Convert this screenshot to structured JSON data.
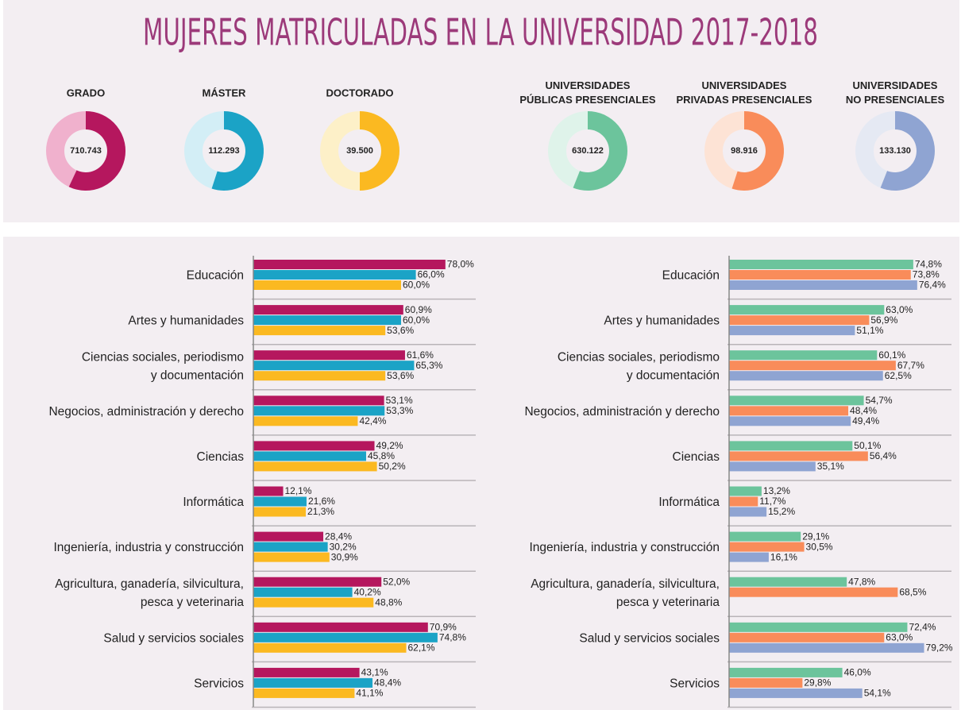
{
  "chart_data": [
    {
      "type": "donut",
      "title": "MUJERES MATRICULADAS EN LA UNIVERSIDAD 2017-2018",
      "series": [
        {
          "name": "GRADO",
          "color": "#b5175e",
          "track_color": "#f0b1cd",
          "value": 710743,
          "value_label": "710.743",
          "share": 57
        },
        {
          "name": "MÁSTER",
          "color": "#1ba3c6",
          "track_color": "#d3eef6",
          "value": 112293,
          "value_label": "112.293",
          "share": 55
        },
        {
          "name": "DOCTORADO",
          "color": "#fbb921",
          "track_color": "#fdf0c8",
          "value": 39500,
          "value_label": "39.500",
          "share": 50
        },
        {
          "name": "UNIVERSIDADES\nPÚBLICAS PRESENCIALES",
          "color": "#6cc49c",
          "track_color": "#dff3ea",
          "value": 630122,
          "value_label": "630.122",
          "share": 56
        },
        {
          "name": "UNIVERSIDADES\nPRIVADAS PRESENCIALES",
          "color": "#f98c5a",
          "track_color": "#fde3d5",
          "value": 98916,
          "value_label": "98.916",
          "share": 55
        },
        {
          "name": "UNIVERSIDADES\nNO PRESENCIALES",
          "color": "#8fa4d2",
          "track_color": "#e5e9f3",
          "value": 133130,
          "value_label": "133.130",
          "share": 56
        }
      ]
    },
    {
      "type": "hbar",
      "categories": [
        "Educación",
        "Artes y humanidades",
        "Ciencias sociales, periodismo\ny documentación",
        "Negocios, administración y derecho",
        "Ciencias",
        "Informática",
        "Ingeniería, industria y construcción",
        "Agricultura, ganadería,  silvicultura,\npesca y veterinaria",
        "Salud y servicios sociales",
        "Servicios"
      ],
      "xlim": [
        0,
        100
      ],
      "series": [
        {
          "color": "#b5175e",
          "values": [
            78.0,
            60.9,
            61.6,
            53.1,
            49.2,
            12.1,
            28.4,
            52.0,
            70.9,
            43.1
          ],
          "value_labels": [
            "78,0%",
            "60,9%",
            "61,6%",
            "53,1%",
            "49,2%",
            "12,1%",
            "28,4%",
            "52,0%",
            "70,9%",
            "43,1%"
          ]
        },
        {
          "color": "#1ba3c6",
          "values": [
            66.0,
            60.0,
            65.3,
            53.3,
            45.8,
            21.6,
            30.2,
            40.2,
            74.8,
            48.4
          ],
          "value_labels": [
            "66,0%",
            "60,0%",
            "65,3%",
            "53,3%",
            "45,8%",
            "21,6%",
            "30,2%",
            "40,2%",
            "74,8%",
            "48,4%"
          ]
        },
        {
          "color": "#fbb921",
          "values": [
            60.0,
            53.6,
            53.6,
            42.4,
            50.2,
            21.3,
            30.9,
            48.8,
            62.1,
            41.1
          ],
          "value_labels": [
            "60,0%",
            "53,6%",
            "53,6%",
            "42,4%",
            "50,2%",
            "21,3%",
            "30,9%",
            "48,8%",
            "62,1%",
            "41,1%"
          ]
        }
      ]
    },
    {
      "type": "hbar",
      "categories": [
        "Educación",
        "Artes y humanidades",
        "Ciencias sociales, periodismo\ny documentación",
        "Negocios, administración y derecho",
        "Ciencias",
        "Informática",
        "Ingeniería, industria y construcción",
        "Agricultura, ganadería,  silvicultura,\npesca y veterinaria",
        "Salud y servicios sociales",
        "Servicios"
      ],
      "xlim": [
        0,
        100
      ],
      "series": [
        {
          "color": "#6cc49c",
          "values": [
            74.8,
            63.0,
            60.1,
            54.7,
            50.1,
            13.2,
            29.1,
            47.8,
            72.4,
            46.0
          ],
          "value_labels": [
            "74,8%",
            "63,0%",
            "60,1%",
            "54,7%",
            "50,1%",
            "13,2%",
            "29,1%",
            "47,8%",
            "72,4%",
            "46,0%"
          ]
        },
        {
          "color": "#f98c5a",
          "values": [
            73.8,
            56.9,
            67.7,
            48.4,
            56.4,
            11.7,
            30.5,
            68.5,
            63.0,
            29.8
          ],
          "value_labels": [
            "73,8%",
            "56,9%",
            "67,7%",
            "48,4%",
            "56,4%",
            "11,7%",
            "30,5%",
            "68,5%",
            "63,0%",
            "29,8%"
          ]
        },
        {
          "color": "#8fa4d2",
          "values": [
            76.4,
            51.1,
            62.5,
            49.4,
            35.1,
            15.2,
            16.1,
            null,
            79.2,
            54.1
          ],
          "value_labels": [
            "76,4%",
            "51,1%",
            "62,5%",
            "49,4%",
            "35,1%",
            "15,2%",
            "16,1%",
            null,
            "79,2%",
            "54,1%"
          ]
        }
      ]
    }
  ]
}
